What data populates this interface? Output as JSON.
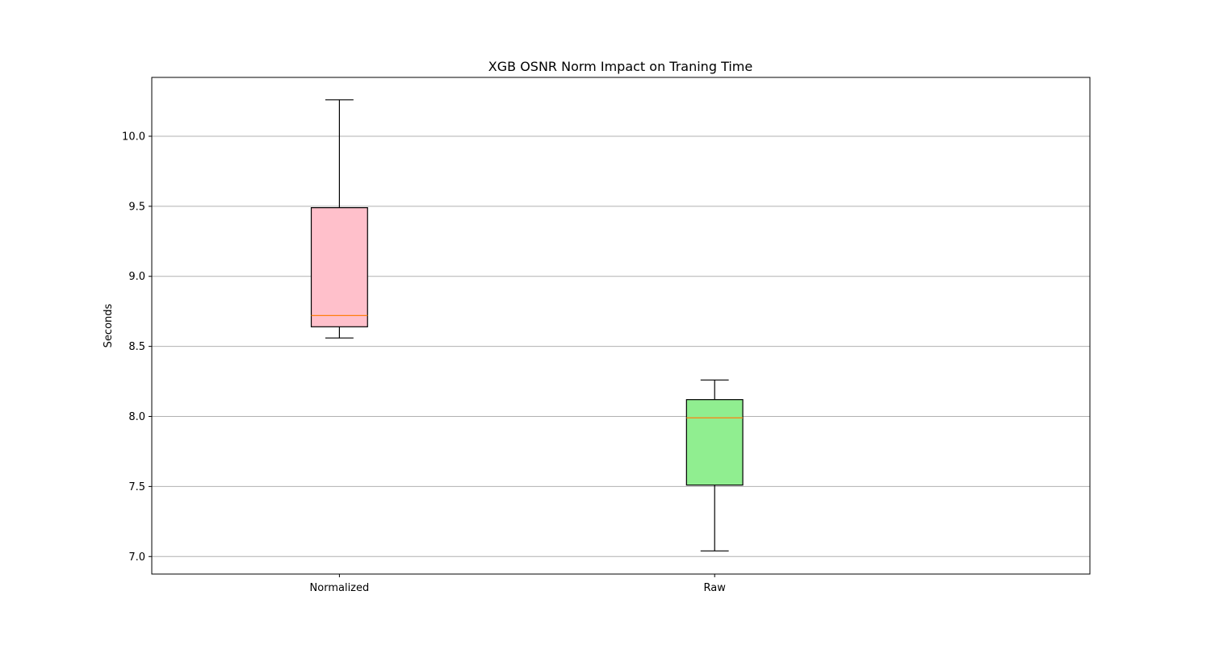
{
  "chart_data": {
    "type": "box",
    "title": "XGB OSNR Norm Impact on Traning Time",
    "xlabel": "",
    "ylabel": "Seconds",
    "ylim": [
      6.875,
      10.42
    ],
    "yticks": [
      7.0,
      7.5,
      8.0,
      8.5,
      9.0,
      9.5,
      10.0
    ],
    "ytick_labels": [
      "7.0",
      "7.5",
      "8.0",
      "8.5",
      "9.0",
      "9.5",
      "10.0"
    ],
    "grid": "y",
    "categories": [
      "Normalized",
      "Raw"
    ],
    "boxes": [
      {
        "category": "Normalized",
        "whisker_low": 8.56,
        "q1": 8.64,
        "median": 8.72,
        "q3": 9.49,
        "whisker_high": 10.26,
        "fill": "#ffc0cb"
      },
      {
        "category": "Raw",
        "whisker_low": 7.04,
        "q1": 7.51,
        "median": 7.99,
        "q3": 8.12,
        "whisker_high": 8.26,
        "fill": "#90ee90"
      }
    ],
    "median_color": "#ff7f0e",
    "grid_color": "#b0b0b0"
  }
}
